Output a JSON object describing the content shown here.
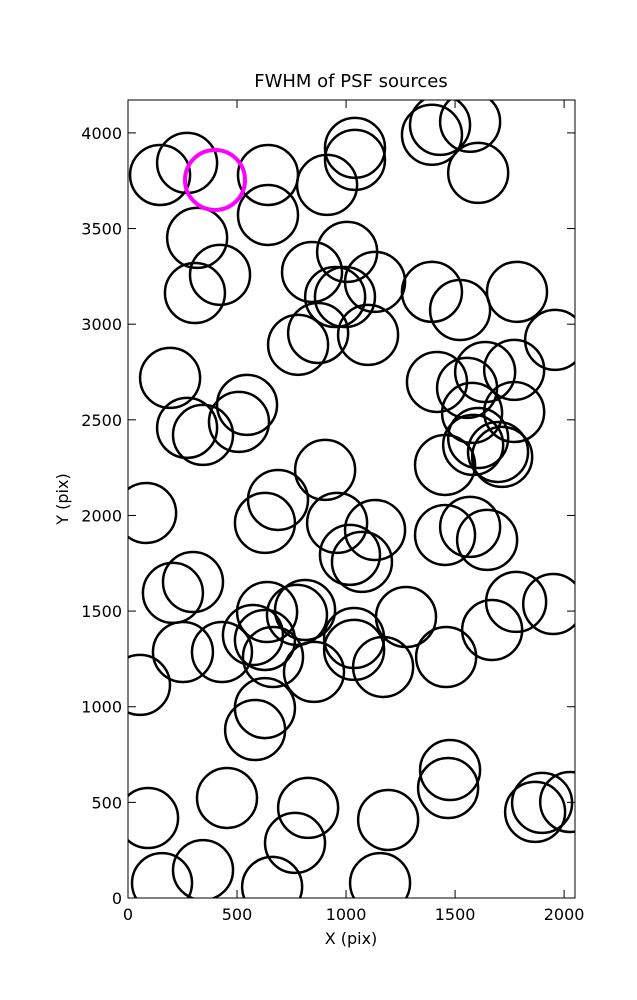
{
  "chart_data": {
    "type": "scatter",
    "title": "FWHM of PSF sources",
    "xlabel": "X (pix)",
    "ylabel": "Y (pix)",
    "xlim": [
      0,
      2050
    ],
    "ylim": [
      0,
      4172
    ],
    "xticks": [
      0,
      500,
      1000,
      1500,
      2000
    ],
    "yticks": [
      0,
      500,
      1000,
      1500,
      2000,
      2500,
      3000,
      3500,
      4000
    ],
    "series": [
      {
        "color": "#000000",
        "x": [
          147,
          271,
          642,
          642,
          913,
          1041,
          1041,
          1394,
          1431,
          1569,
          1606,
          317,
          422,
          307,
          1005,
          844,
          1133,
          950,
          995,
          872,
          780,
          1101,
          1394,
          1523,
          1784,
          1959,
          193,
          546,
          271,
          344,
          509,
          1417,
          1555,
          1638,
          1771,
          1771,
          1578,
          1606,
          1583,
          1697,
          1716,
          1454,
          904,
          83,
          688,
          628,
          959,
          1133,
          1018,
          1073,
          1454,
          1569,
          1647,
          298,
          206,
          638,
          775,
          812,
          573,
          628,
          665,
          431,
          252,
          55,
          853,
          1037,
          1037,
          1170,
          1275,
          1459,
          1670,
          1780,
          1950,
          628,
          583,
          92,
          454,
          826,
          766,
          1193,
          1477,
          1468,
          1899,
          1867,
          2028,
          156,
          344,
          661,
          1156
        ],
        "y": [
          3780,
          3843,
          3780,
          3571,
          3728,
          3922,
          3859,
          3990,
          4042,
          4058,
          3791,
          3451,
          3258,
          3163,
          3378,
          3273,
          3221,
          3142,
          3142,
          2954,
          2892,
          2944,
          3169,
          3074,
          3169,
          2918,
          2719,
          2578,
          2458,
          2421,
          2489,
          2698,
          2667,
          2750,
          2761,
          2541,
          2536,
          2405,
          2369,
          2332,
          2306,
          2264,
          2238,
          2013,
          2081,
          1961,
          1961,
          1924,
          1794,
          1757,
          1898,
          1940,
          1872,
          1652,
          1595,
          1495,
          1480,
          1506,
          1375,
          1349,
          1260,
          1286,
          1286,
          1114,
          1182,
          1359,
          1297,
          1208,
          1469,
          1260,
          1401,
          1548,
          1537,
          993,
          878,
          418,
          523,
          471,
          288,
          408,
          669,
          575,
          497,
          450,
          502,
          78,
          146,
          58,
          78
        ]
      },
      {
        "color": "#ff00ff",
        "x": [
          399
        ],
        "y": [
          3754
        ]
      }
    ]
  }
}
